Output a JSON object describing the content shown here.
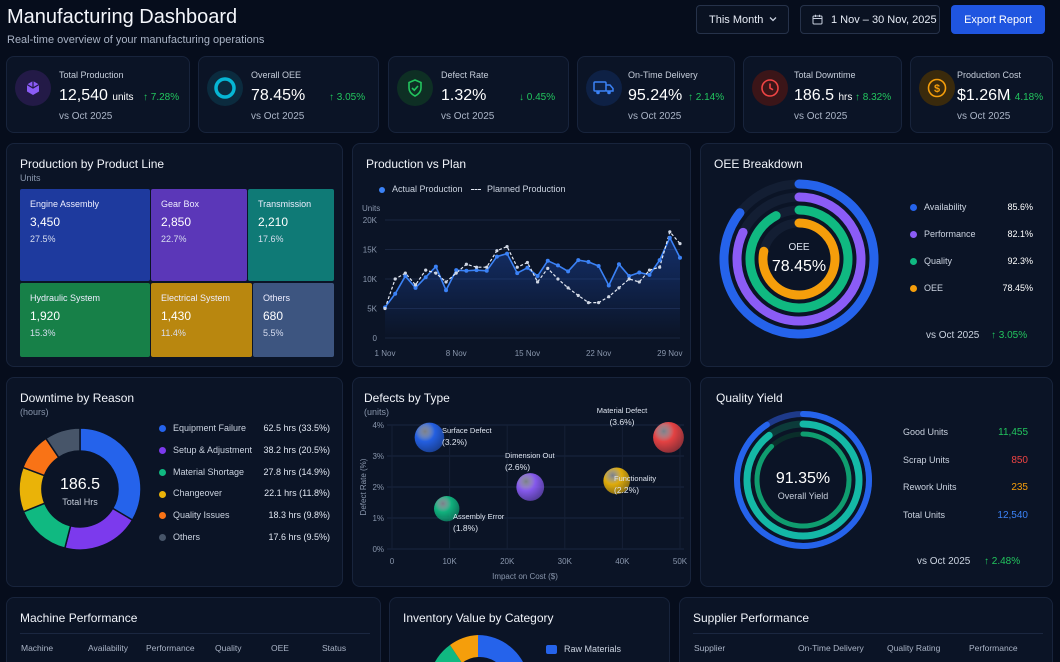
{
  "header": {
    "title": "Manufacturing Dashboard",
    "subtitle": "Real-time overview of your manufacturing operations",
    "period": "This Month",
    "date_range": "1 Nov – 30 Nov, 2025",
    "export_label": "Export Report"
  },
  "kpis": [
    {
      "label": "Total Production",
      "value": "12,540",
      "unit": "units",
      "delta": "↑ 7.28%",
      "vs": "vs Oct 2025",
      "icon": "cube-icon",
      "color": "#8b5cf6"
    },
    {
      "label": "Overall OEE",
      "value": "78.45%",
      "unit": "",
      "delta": "↑ 3.05%",
      "vs": "vs Oct 2025",
      "icon": "ring-icon",
      "color": "#06b6d4"
    },
    {
      "label": "Defect Rate",
      "value": "1.32%",
      "unit": "",
      "delta": "↓ 0.45%",
      "vs": "vs Oct 2025",
      "icon": "shield-check-icon",
      "color": "#22c55e"
    },
    {
      "label": "On-Time Delivery",
      "value": "95.24%",
      "unit": "",
      "delta": "↑ 2.14%",
      "vs": "vs Oct 2025",
      "icon": "truck-icon",
      "color": "#3b82f6"
    },
    {
      "label": "Total Downtime",
      "value": "186.5",
      "unit": "hrs",
      "delta": "↑ 8.32%",
      "vs": "vs Oct 2025",
      "icon": "clock-icon",
      "color": "#ef4444"
    },
    {
      "label": "Production Cost",
      "value": "$1.26M",
      "unit": "",
      "delta": "↓ 4.18%",
      "vs": "vs Oct 2025",
      "icon": "dollar-icon",
      "color": "#f59e0b"
    }
  ],
  "product_line": {
    "title": "Production by Product Line",
    "subtitle": "Units",
    "items": [
      {
        "name": "Engine Assembly",
        "value": "3,450",
        "pct": "27.5%",
        "color": "#1e3a9e"
      },
      {
        "name": "Gear Box",
        "value": "2,850",
        "pct": "22.7%",
        "color": "#5b37b8"
      },
      {
        "name": "Transmission",
        "value": "2,210",
        "pct": "17.6%",
        "color": "#0f7a76"
      },
      {
        "name": "Hydraulic System",
        "value": "1,920",
        "pct": "15.3%",
        "color": "#178048"
      },
      {
        "name": "Electrical System",
        "value": "1,430",
        "pct": "11.4%",
        "color": "#b9870f"
      },
      {
        "name": "Others",
        "value": "680",
        "pct": "5.5%",
        "color": "#3d5580"
      }
    ]
  },
  "production_plan": {
    "title": "Production vs Plan",
    "legend_actual": "Actual Production",
    "legend_planned": "Planned Production",
    "y_unit": "Units",
    "y_ticks": [
      "0",
      "5K",
      "10K",
      "15K",
      "20K"
    ],
    "x_ticks": [
      "1 Nov",
      "8 Nov",
      "15 Nov",
      "22 Nov",
      "29 Nov"
    ]
  },
  "oee": {
    "title": "OEE Breakdown",
    "center_label": "OEE",
    "center_value": "78.45%",
    "vs": "vs Oct 2025",
    "delta": "↑ 3.05%",
    "items": [
      {
        "name": "Availability",
        "value": "85.6%",
        "color": "#2563eb"
      },
      {
        "name": "Performance",
        "value": "82.1%",
        "color": "#8b5cf6"
      },
      {
        "name": "Quality",
        "value": "92.3%",
        "color": "#10b981"
      },
      {
        "name": "OEE",
        "value": "78.45%",
        "color": "#f59e0b"
      }
    ]
  },
  "downtime": {
    "title": "Downtime by Reason",
    "subtitle": "(hours)",
    "center_value": "186.5",
    "center_label": "Total Hrs",
    "items": [
      {
        "name": "Equipment Failure",
        "value": "62.5 hrs (33.5%)",
        "color": "#2563eb"
      },
      {
        "name": "Setup & Adjustment",
        "value": "38.2 hrs (20.5%)",
        "color": "#7c3aed"
      },
      {
        "name": "Material Shortage",
        "value": "27.8 hrs (14.9%)",
        "color": "#10b981"
      },
      {
        "name": "Changeover",
        "value": "22.1 hrs (11.8%)",
        "color": "#eab308"
      },
      {
        "name": "Quality Issues",
        "value": "18.3 hrs (9.8%)",
        "color": "#f97316"
      },
      {
        "name": "Others",
        "value": "17.6 hrs (9.5%)",
        "color": "#475569"
      }
    ]
  },
  "defects": {
    "title": "Defects by Type",
    "subtitle": "(units)",
    "y_label": "Defect Rate (%)",
    "x_label": "Impact on Cost ($)",
    "y_ticks": [
      "0%",
      "1%",
      "2%",
      "3%",
      "4%"
    ],
    "x_ticks": [
      "0",
      "10K",
      "20K",
      "30K",
      "40K",
      "50K"
    ]
  },
  "quality": {
    "title": "Quality Yield",
    "center_value": "91.35%",
    "center_label": "Overall Yield",
    "vs": "vs Oct 2025",
    "delta": "↑ 2.48%",
    "items": [
      {
        "name": "Good Units",
        "value": "11,455",
        "color": "#22c55e"
      },
      {
        "name": "Scrap Units",
        "value": "850",
        "color": "#ef4444"
      },
      {
        "name": "Rework Units",
        "value": "235",
        "color": "#f59e0b"
      },
      {
        "name": "Total Units",
        "value": "12,540",
        "color": "#3b82f6"
      }
    ]
  },
  "machine": {
    "title": "Machine Performance",
    "columns": [
      "Machine",
      "Availability",
      "Performance",
      "Quality",
      "OEE",
      "Status"
    ]
  },
  "inventory": {
    "title": "Inventory Value by Category",
    "legend_first": "Raw Materials"
  },
  "supplier": {
    "title": "Supplier Performance",
    "columns": [
      "Supplier",
      "On-Time Delivery",
      "Quality Rating",
      "Performance"
    ]
  },
  "chart_data": [
    {
      "type": "line",
      "title": "Production vs Plan",
      "ylabel": "Units",
      "ylim": [
        0,
        20000
      ],
      "x": [
        "1 Nov",
        "2 Nov",
        "3 Nov",
        "4 Nov",
        "5 Nov",
        "6 Nov",
        "7 Nov",
        "8 Nov",
        "9 Nov",
        "10 Nov",
        "11 Nov",
        "12 Nov",
        "13 Nov",
        "14 Nov",
        "15 Nov",
        "16 Nov",
        "17 Nov",
        "18 Nov",
        "19 Nov",
        "20 Nov",
        "21 Nov",
        "22 Nov",
        "23 Nov",
        "24 Nov",
        "25 Nov",
        "26 Nov",
        "27 Nov",
        "28 Nov",
        "29 Nov",
        "30 Nov"
      ],
      "series": [
        {
          "name": "Actual Production",
          "values": [
            5200,
            7500,
            10500,
            8500,
            10300,
            12100,
            8100,
            11500,
            11400,
            11500,
            11400,
            13800,
            14300,
            11000,
            11900,
            10500,
            13100,
            12300,
            11300,
            13200,
            12900,
            12200,
            8900,
            12500,
            10500,
            11100,
            10700,
            13200,
            17000,
            13600
          ]
        },
        {
          "name": "Planned Production",
          "values": [
            5000,
            10000,
            11000,
            9000,
            11500,
            11000,
            9500,
            11000,
            12500,
            12000,
            12000,
            14800,
            15500,
            12000,
            12800,
            9500,
            11800,
            10000,
            8500,
            7200,
            6000,
            6000,
            7000,
            8500,
            10000,
            9500,
            11500,
            12000,
            18000,
            16000
          ]
        }
      ],
      "legend": "top-left",
      "grid": true
    },
    {
      "type": "bar",
      "title": "Production by Product Line",
      "categories": [
        "Engine Assembly",
        "Gear Box",
        "Transmission",
        "Hydraulic System",
        "Electrical System",
        "Others"
      ],
      "values": [
        3450,
        2850,
        2210,
        1920,
        1430,
        680
      ]
    },
    {
      "type": "pie",
      "title": "Downtime by Reason",
      "categories": [
        "Equipment Failure",
        "Setup & Adjustment",
        "Material Shortage",
        "Changeover",
        "Quality Issues",
        "Others"
      ],
      "values": [
        62.5,
        38.2,
        27.8,
        22.1,
        18.3,
        17.6
      ]
    },
    {
      "type": "bar",
      "title": "OEE Breakdown",
      "categories": [
        "Availability",
        "Performance",
        "Quality",
        "OEE"
      ],
      "values": [
        85.6,
        82.1,
        92.3,
        78.45
      ]
    },
    {
      "type": "scatter",
      "title": "Defects by Type",
      "xlabel": "Impact on Cost ($)",
      "ylabel": "Defect Rate (%)",
      "xlim": [
        0,
        55000
      ],
      "ylim": [
        0,
        4
      ],
      "points": [
        {
          "label": "Surface Defect",
          "x": 6500,
          "y": 3.6,
          "size": 3.2,
          "color": "#2563eb",
          "text": "Surface Defect\n(3.2%)"
        },
        {
          "label": "Material Defect",
          "x": 48000,
          "y": 3.6,
          "size": 3.6,
          "color": "#ef4444",
          "text": "Material Defect\n(3.6%)"
        },
        {
          "label": "Dimension Out",
          "x": 24000,
          "y": 2.0,
          "size": 2.6,
          "color": "#8b5cf6",
          "text": "Dimension Out\n(2.6%)"
        },
        {
          "label": "Functionality",
          "x": 39000,
          "y": 2.2,
          "size": 2.2,
          "color": "#eab308",
          "text": "Functionality\n(2.2%)"
        },
        {
          "label": "Assembly Error",
          "x": 9500,
          "y": 1.3,
          "size": 1.8,
          "color": "#10b981",
          "text": "Assembly Error\n(1.8%)"
        }
      ],
      "grid": true
    },
    {
      "type": "pie",
      "title": "Quality Yield",
      "categories": [
        "Good Units",
        "Scrap Units",
        "Rework Units"
      ],
      "values": [
        11455,
        850,
        235
      ]
    }
  ]
}
